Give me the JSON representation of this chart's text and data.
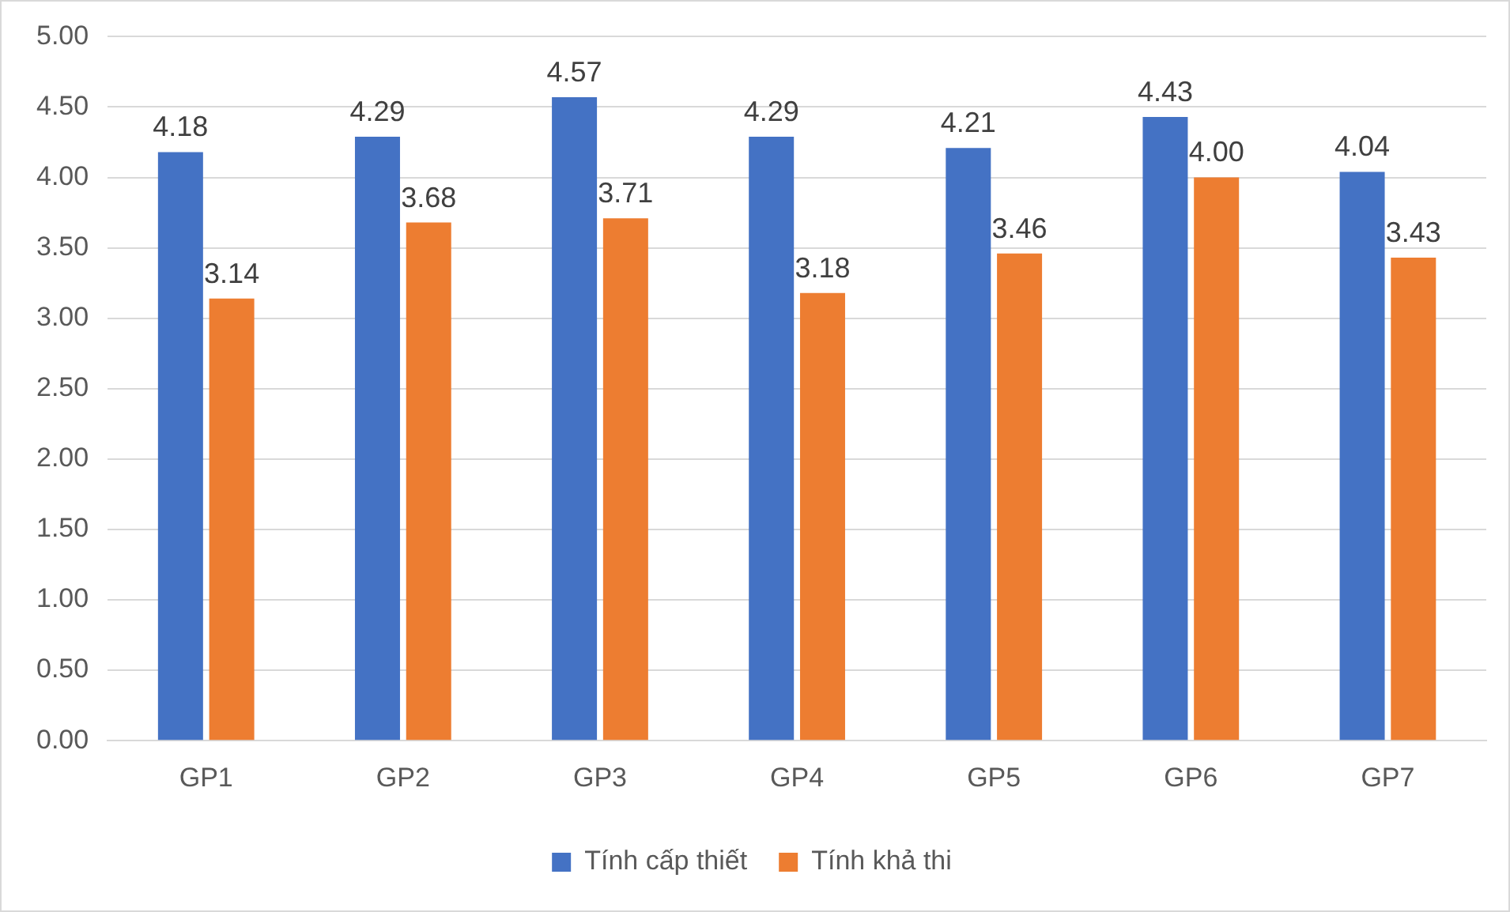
{
  "chart_data": {
    "type": "bar",
    "categories": [
      "GP1",
      "GP2",
      "GP3",
      "GP4",
      "GP5",
      "GP6",
      "GP7"
    ],
    "series": [
      {
        "name": "Tính cấp thiết",
        "color": "#4472c4",
        "values": [
          4.18,
          4.29,
          4.57,
          4.29,
          4.21,
          4.43,
          4.04
        ],
        "value_labels": [
          "4.18",
          "4.29",
          "4.57",
          "4.29",
          "4.21",
          "4.43",
          "4.04"
        ]
      },
      {
        "name": "Tính khả thi",
        "color": "#ed7d31",
        "values": [
          3.14,
          3.68,
          3.71,
          3.18,
          3.46,
          4.0,
          3.43
        ],
        "value_labels": [
          "3.14",
          "3.68",
          "3.71",
          "3.18",
          "3.46",
          "4.00",
          "3.43"
        ]
      }
    ],
    "ylim": [
      0,
      5
    ],
    "yticks": [
      {
        "value": 0,
        "label": "0.00"
      },
      {
        "value": 0.5,
        "label": "0.50"
      },
      {
        "value": 1,
        "label": "1.00"
      },
      {
        "value": 1.5,
        "label": "1.50"
      },
      {
        "value": 2,
        "label": "2.00"
      },
      {
        "value": 2.5,
        "label": "2.50"
      },
      {
        "value": 3,
        "label": "3.00"
      },
      {
        "value": 3.5,
        "label": "3.50"
      },
      {
        "value": 4,
        "label": "4.00"
      },
      {
        "value": 4.5,
        "label": "4.50"
      },
      {
        "value": 5,
        "label": "5.00"
      }
    ],
    "grid": "y",
    "legend": "bottom"
  }
}
